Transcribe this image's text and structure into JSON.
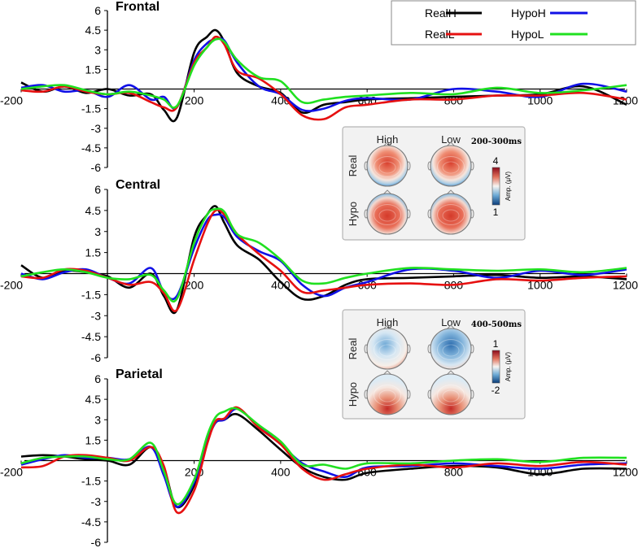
{
  "chart_data": {
    "type": "line",
    "title": "",
    "xlabel": "",
    "ylabel": "",
    "xlim": [
      -200,
      1200
    ],
    "ylim": [
      -6,
      6
    ],
    "x_ticks": [
      "-200",
      "200",
      "400",
      "600",
      "800",
      "1000",
      "1200"
    ],
    "y_ticks": [
      "6",
      "4.5",
      "3",
      "1.5",
      "-1.5",
      "-3",
      "-4.5",
      "-6"
    ],
    "legend": {
      "placement": "top-right",
      "entries": [
        {
          "name": "RealH",
          "color": "#000000"
        },
        {
          "name": "HypoH",
          "color": "#1010e6"
        },
        {
          "name": "RealL",
          "color": "#e61010"
        },
        {
          "name": "HypoL",
          "color": "#20e020"
        }
      ]
    },
    "panels": [
      {
        "title": "Frontal",
        "x": [
          -200,
          -150,
          -100,
          -50,
          0,
          50,
          100,
          130,
          160,
          200,
          230,
          250,
          270,
          300,
          350,
          400,
          450,
          500,
          550,
          600,
          700,
          800,
          900,
          1000,
          1100,
          1200
        ],
        "series": [
          {
            "name": "RealH",
            "color": "#000000",
            "values": [
              0.5,
              -0.2,
              0.2,
              -0.3,
              0.0,
              -0.5,
              -0.4,
              -1.6,
              -2.2,
              2.8,
              4.0,
              4.5,
              3.6,
              1.2,
              0.2,
              -0.3,
              -1.8,
              -1.2,
              -1.0,
              -0.8,
              -0.7,
              -0.6,
              -0.5,
              -0.4,
              0.2,
              -1.2
            ]
          },
          {
            "name": "HypoH",
            "color": "#1010e6",
            "values": [
              0.1,
              0.3,
              -0.2,
              -0.1,
              -0.6,
              0.3,
              -0.8,
              -0.6,
              -1.4,
              2.2,
              3.5,
              3.8,
              3.7,
              2.0,
              0.2,
              -0.4,
              -1.6,
              -1.5,
              -0.9,
              -0.7,
              -0.8,
              0.0,
              -0.2,
              -0.6,
              0.4,
              -0.2
            ]
          },
          {
            "name": "RealL",
            "color": "#e61010",
            "values": [
              -0.1,
              -0.2,
              0.2,
              -0.2,
              -0.4,
              -0.3,
              -1.0,
              -1.4,
              -1.4,
              2.0,
              3.2,
              4.0,
              3.4,
              1.4,
              0.8,
              -0.4,
              -2.0,
              -2.3,
              -1.4,
              -1.2,
              -0.8,
              -0.8,
              -0.5,
              -0.5,
              -0.3,
              -0.8
            ]
          },
          {
            "name": "HypoL",
            "color": "#20e020",
            "values": [
              0.0,
              0.2,
              0.3,
              -0.1,
              -0.4,
              -0.2,
              -0.5,
              -0.8,
              -1.3,
              1.8,
              3.2,
              3.8,
              3.6,
              2.2,
              0.9,
              0.6,
              -1.0,
              -0.8,
              -0.6,
              -0.5,
              -0.3,
              -0.4,
              0.1,
              -0.3,
              -0.1,
              0.3
            ]
          }
        ]
      },
      {
        "title": "Central",
        "x": [
          -200,
          -150,
          -100,
          -50,
          0,
          50,
          100,
          130,
          160,
          200,
          230,
          250,
          270,
          300,
          350,
          400,
          450,
          500,
          550,
          600,
          700,
          800,
          900,
          1000,
          1100,
          1200
        ],
        "series": [
          {
            "name": "RealH",
            "color": "#000000",
            "values": [
              0.6,
              -0.3,
              0.2,
              0.1,
              -0.2,
              -1.0,
              0.0,
              -1.6,
              -2.6,
              2.6,
              4.2,
              4.8,
              3.6,
              2.0,
              1.0,
              -0.6,
              -1.8,
              -1.6,
              -0.8,
              -0.4,
              -0.3,
              -0.2,
              -0.1,
              -0.3,
              -0.2,
              -0.4
            ]
          },
          {
            "name": "HypoH",
            "color": "#1010e6",
            "values": [
              0.0,
              -0.4,
              0.1,
              0.3,
              -0.3,
              -0.7,
              0.4,
              -1.3,
              -1.6,
              1.8,
              3.8,
              4.2,
              4.0,
              2.6,
              1.6,
              0.9,
              -0.8,
              -1.6,
              -1.0,
              -0.6,
              0.3,
              0.2,
              -0.3,
              0.2,
              -0.1,
              0.3
            ]
          },
          {
            "name": "RealL",
            "color": "#e61010",
            "values": [
              -0.2,
              -0.3,
              0.3,
              0.2,
              -0.3,
              -0.8,
              -0.6,
              -1.4,
              -2.6,
              1.0,
              3.5,
              4.5,
              4.2,
              2.8,
              1.4,
              0.2,
              -1.3,
              -1.2,
              -1.0,
              -0.8,
              -0.7,
              -0.8,
              -0.4,
              -0.5,
              -0.3,
              -0.2
            ]
          },
          {
            "name": "HypoL",
            "color": "#20e020",
            "values": [
              -0.2,
              0.1,
              0.3,
              0.1,
              -0.3,
              -0.4,
              -0.1,
              -1.2,
              -1.8,
              2.2,
              4.2,
              4.6,
              4.4,
              2.8,
              2.2,
              1.0,
              -0.5,
              -0.7,
              -0.3,
              0.0,
              0.4,
              0.3,
              0.2,
              0.3,
              0.1,
              0.4
            ]
          }
        ]
      },
      {
        "title": "Parietal",
        "x": [
          -200,
          -150,
          -100,
          -50,
          0,
          50,
          100,
          130,
          160,
          200,
          230,
          250,
          270,
          300,
          350,
          400,
          450,
          500,
          550,
          600,
          700,
          800,
          900,
          1000,
          1100,
          1200
        ],
        "series": [
          {
            "name": "RealH",
            "color": "#000000",
            "values": [
              0.3,
              0.4,
              0.3,
              0.1,
              0.0,
              -0.3,
              1.0,
              -0.5,
              -3.4,
              -1.8,
              1.6,
              2.8,
              3.0,
              3.4,
              2.2,
              0.8,
              -0.5,
              -1.2,
              -1.4,
              -0.9,
              -0.6,
              -0.4,
              -0.5,
              -1.0,
              -0.6,
              -0.6
            ]
          },
          {
            "name": "HypoH",
            "color": "#1010e6",
            "values": [
              -0.3,
              0.1,
              0.4,
              0.2,
              0.2,
              0.1,
              1.0,
              -1.1,
              -3.4,
              -1.6,
              1.4,
              2.8,
              3.0,
              3.8,
              2.5,
              1.2,
              -0.2,
              -0.8,
              -1.2,
              -0.5,
              -0.4,
              -0.2,
              -0.4,
              -0.6,
              -0.3,
              -0.2
            ]
          },
          {
            "name": "RealL",
            "color": "#e61010",
            "values": [
              -0.5,
              -0.4,
              0.3,
              0.4,
              0.2,
              0.0,
              1.0,
              -0.4,
              -3.8,
              -2.2,
              1.2,
              2.9,
              3.1,
              3.9,
              2.4,
              1.2,
              -0.6,
              -1.4,
              -1.0,
              -0.6,
              -0.3,
              -0.5,
              -0.2,
              -0.4,
              -0.1,
              -0.3
            ]
          },
          {
            "name": "HypoL",
            "color": "#20e020",
            "values": [
              -0.2,
              0.2,
              0.3,
              0.3,
              0.1,
              0.1,
              1.3,
              -0.8,
              -3.2,
              -1.4,
              1.8,
              3.2,
              3.6,
              3.8,
              2.6,
              1.4,
              -0.3,
              -0.3,
              -0.6,
              -0.2,
              -0.2,
              0.0,
              0.1,
              -0.1,
              0.2,
              0.2
            ]
          }
        ]
      }
    ],
    "topomap_insets": [
      {
        "window": "200-300ms",
        "columns": [
          "High",
          "Low"
        ],
        "rows": [
          "Real",
          "Hypo"
        ],
        "colorbar_max": "4",
        "colorbar_min": "1",
        "colorbar_unit": "Amp. (μV)",
        "maps": [
          {
            "row": "Real",
            "col": "High",
            "pattern": "frontal-central-positive"
          },
          {
            "row": "Real",
            "col": "Low",
            "pattern": "frontal-central-positive"
          },
          {
            "row": "Hypo",
            "col": "High",
            "pattern": "central-positive"
          },
          {
            "row": "Hypo",
            "col": "Low",
            "pattern": "central-positive"
          }
        ]
      },
      {
        "window": "400-500ms",
        "columns": [
          "High",
          "Low"
        ],
        "rows": [
          "Real",
          "Hypo"
        ],
        "colorbar_max": "1",
        "colorbar_min": "-2",
        "colorbar_unit": "Amp. (μV)",
        "maps": [
          {
            "row": "Real",
            "col": "High",
            "pattern": "frontal-negative"
          },
          {
            "row": "Real",
            "col": "Low",
            "pattern": "frontal-strong-negative"
          },
          {
            "row": "Hypo",
            "col": "High",
            "pattern": "posterior-positive"
          },
          {
            "row": "Hypo",
            "col": "Low",
            "pattern": "posterior-positive"
          }
        ]
      }
    ]
  }
}
